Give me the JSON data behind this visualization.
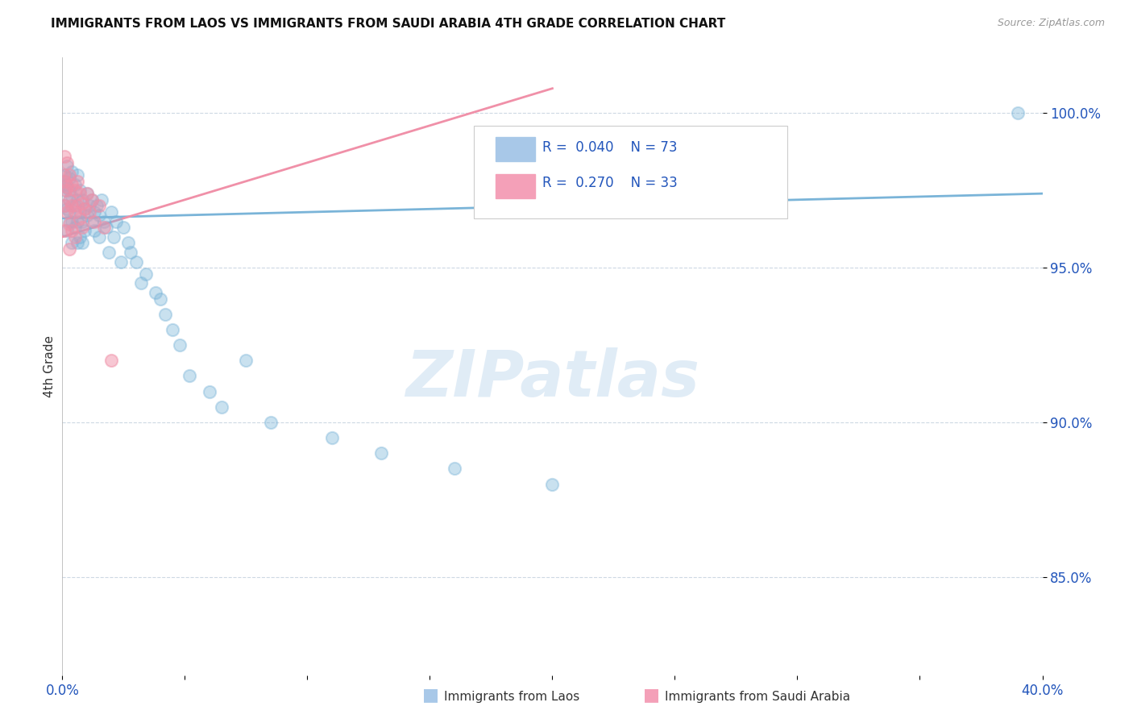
{
  "title": "IMMIGRANTS FROM LAOS VS IMMIGRANTS FROM SAUDI ARABIA 4TH GRADE CORRELATION CHART",
  "source": "Source: ZipAtlas.com",
  "ylabel": "4th Grade",
  "ytick_labels": [
    "85.0%",
    "90.0%",
    "95.0%",
    "100.0%"
  ],
  "ytick_values": [
    0.85,
    0.9,
    0.95,
    1.0
  ],
  "xlim": [
    0.0,
    0.4
  ],
  "ylim": [
    0.818,
    1.018
  ],
  "r_color": "#2255bb",
  "blue_color": "#7ab4d8",
  "pink_color": "#f090a8",
  "blue_line_x": [
    0.0,
    0.4
  ],
  "blue_line_y": [
    0.966,
    0.974
  ],
  "pink_line_x": [
    0.0,
    0.2
  ],
  "pink_line_y": [
    0.96,
    1.008
  ],
  "blue_scatter_x": [
    0.0005,
    0.001,
    0.001,
    0.001,
    0.0015,
    0.002,
    0.002,
    0.002,
    0.002,
    0.003,
    0.003,
    0.003,
    0.003,
    0.003,
    0.004,
    0.004,
    0.004,
    0.004,
    0.005,
    0.005,
    0.005,
    0.006,
    0.006,
    0.006,
    0.006,
    0.007,
    0.007,
    0.007,
    0.008,
    0.008,
    0.008,
    0.009,
    0.009,
    0.01,
    0.01,
    0.011,
    0.012,
    0.012,
    0.013,
    0.013,
    0.014,
    0.015,
    0.015,
    0.016,
    0.017,
    0.018,
    0.019,
    0.02,
    0.021,
    0.022,
    0.024,
    0.025,
    0.027,
    0.028,
    0.03,
    0.032,
    0.034,
    0.038,
    0.04,
    0.042,
    0.045,
    0.048,
    0.052,
    0.06,
    0.065,
    0.075,
    0.085,
    0.11,
    0.13,
    0.16,
    0.2,
    0.39
  ],
  "blue_scatter_y": [
    0.978,
    0.98,
    0.975,
    0.97,
    0.977,
    0.983,
    0.976,
    0.969,
    0.962,
    0.979,
    0.972,
    0.965,
    0.975,
    0.968,
    0.981,
    0.973,
    0.965,
    0.958,
    0.977,
    0.97,
    0.963,
    0.98,
    0.972,
    0.965,
    0.958,
    0.975,
    0.968,
    0.96,
    0.972,
    0.965,
    0.958,
    0.969,
    0.962,
    0.974,
    0.967,
    0.97,
    0.972,
    0.965,
    0.968,
    0.962,
    0.97,
    0.967,
    0.96,
    0.972,
    0.965,
    0.963,
    0.955,
    0.968,
    0.96,
    0.965,
    0.952,
    0.963,
    0.958,
    0.955,
    0.952,
    0.945,
    0.948,
    0.942,
    0.94,
    0.935,
    0.93,
    0.925,
    0.915,
    0.91,
    0.905,
    0.92,
    0.9,
    0.895,
    0.89,
    0.885,
    0.88,
    1.0
  ],
  "pink_scatter_x": [
    0.0005,
    0.001,
    0.001,
    0.001,
    0.001,
    0.0015,
    0.002,
    0.002,
    0.002,
    0.003,
    0.003,
    0.003,
    0.003,
    0.004,
    0.004,
    0.004,
    0.005,
    0.005,
    0.005,
    0.006,
    0.006,
    0.007,
    0.007,
    0.008,
    0.008,
    0.009,
    0.01,
    0.011,
    0.012,
    0.013,
    0.015,
    0.017,
    0.02
  ],
  "pink_scatter_y": [
    0.98,
    0.986,
    0.978,
    0.97,
    0.962,
    0.975,
    0.984,
    0.976,
    0.968,
    0.98,
    0.972,
    0.964,
    0.956,
    0.977,
    0.97,
    0.962,
    0.975,
    0.968,
    0.96,
    0.978,
    0.97,
    0.974,
    0.966,
    0.971,
    0.963,
    0.969,
    0.974,
    0.968,
    0.972,
    0.965,
    0.97,
    0.963,
    0.92
  ],
  "legend_bottom_labels": [
    "Immigrants from Laos",
    "Immigrants from Saudi Arabia"
  ]
}
